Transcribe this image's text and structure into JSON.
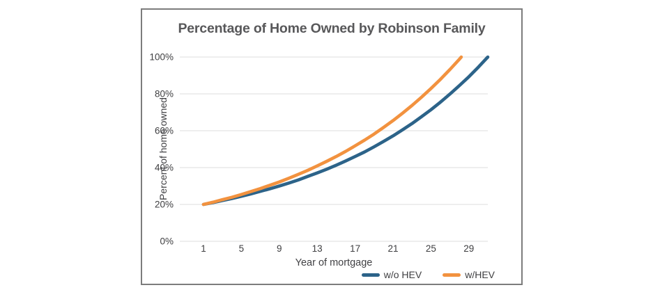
{
  "chart_data": {
    "type": "line",
    "title": "Percentage of Home Owned by Robinson Family",
    "xlabel": "Year of mortgage",
    "ylabel": "Percent of home owned",
    "xlim": [
      -1.5,
      31
    ],
    "ylim": [
      0,
      100
    ],
    "x_ticks": [
      1,
      5,
      9,
      13,
      17,
      21,
      25,
      29
    ],
    "y_tick_values": [
      0,
      20,
      40,
      60,
      80,
      100
    ],
    "y_tick_labels": [
      "0%",
      "20%",
      "40%",
      "60%",
      "80%",
      "100%"
    ],
    "grid": "horizontal-only",
    "legend_position": "bottom-right",
    "series": [
      {
        "name": "w/o HEV",
        "color": "#2c6389",
        "x": [
          1,
          2,
          3,
          4,
          5,
          6,
          7,
          8,
          9,
          10,
          11,
          12,
          13,
          14,
          15,
          16,
          17,
          18,
          19,
          20,
          21,
          22,
          23,
          24,
          25,
          26,
          27,
          28,
          29,
          30,
          31
        ],
        "values": [
          20,
          21,
          22.1,
          23.2,
          24.4,
          25.7,
          27.1,
          28.5,
          30,
          31.6,
          33.3,
          35.2,
          37.1,
          39.1,
          41.3,
          43.6,
          46,
          48.5,
          51.3,
          54.2,
          57.2,
          60.5,
          63.9,
          67.6,
          71.4,
          75.5,
          79.9,
          84.5,
          89.3,
          94.5,
          100
        ]
      },
      {
        "name": "w/HEV",
        "color": "#f2923f",
        "x": [
          1,
          2,
          3,
          4,
          5,
          6,
          7,
          8,
          9,
          10,
          11,
          12,
          13,
          14,
          15,
          16,
          17,
          18,
          19,
          20,
          21,
          22,
          23,
          24,
          25,
          26,
          27,
          28,
          28.2
        ],
        "values": [
          20,
          21.2,
          22.6,
          23.9,
          25.4,
          27,
          28.6,
          30.4,
          32.2,
          34.2,
          36.3,
          38.5,
          40.9,
          43.4,
          46,
          48.8,
          51.8,
          54.9,
          58.2,
          61.8,
          65.5,
          69.5,
          73.7,
          78.2,
          82.9,
          87.9,
          93.2,
          98.8,
          100
        ]
      }
    ]
  },
  "colors": {
    "frame_border": "#7c7c7c",
    "gridline": "#e4e4e4",
    "title_text": "#58585a",
    "tick_text": "#3e3e40",
    "background": "#ffffff"
  }
}
